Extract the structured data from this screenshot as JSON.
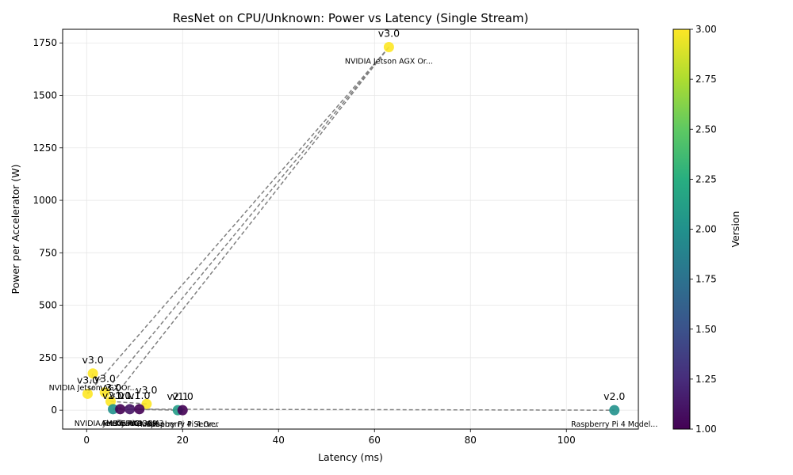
{
  "chart_data": {
    "type": "scatter",
    "title": "ResNet on CPU/Unknown: Power vs Latency (Single Stream)",
    "xlabel": "Latency (ms)",
    "ylabel": "Power per Accelerator (W)",
    "xlim": [
      -5,
      115
    ],
    "ylim": [
      -90,
      1815
    ],
    "xticks": [
      0,
      20,
      40,
      60,
      80,
      100
    ],
    "yticks": [
      0,
      250,
      500,
      750,
      1000,
      1250,
      1500,
      1750
    ],
    "grid": true,
    "colorbar": {
      "label": "Version",
      "range": [
        1.0,
        3.0
      ],
      "ticks": [
        "1.00",
        "1.25",
        "1.50",
        "1.75",
        "2.00",
        "2.25",
        "2.50",
        "2.75",
        "3.00"
      ],
      "colormap": "viridis"
    },
    "points": [
      {
        "x": 63,
        "y": 1730,
        "version": 3.0,
        "version_label": "v3.0",
        "device": "NVIDIA Jetson AGX Or..."
      },
      {
        "x": 1.3,
        "y": 175,
        "version": 3.0,
        "version_label": "v3.0",
        "device": "NVIDIA Jetson AGX Or..."
      },
      {
        "x": 0.2,
        "y": 78,
        "version": 3.0,
        "version_label": "v3.0",
        "device": ""
      },
      {
        "x": 3.8,
        "y": 85,
        "version": 3.0,
        "version_label": "v3.0",
        "device": ""
      },
      {
        "x": 5.0,
        "y": 42,
        "version": 3.0,
        "version_label": "v3.0",
        "device": ""
      },
      {
        "x": 12.5,
        "y": 30,
        "version": 3.0,
        "version_label": "v3.0",
        "device": ""
      },
      {
        "x": 5.5,
        "y": 5,
        "version": 2.0,
        "version_label": "v2.0",
        "device": "NVIDIA Jetson AGX..."
      },
      {
        "x": 7.0,
        "y": 5,
        "version": 1.0,
        "version_label": "v1.0",
        "device": "AMD EPYC"
      },
      {
        "x": 9.0,
        "y": 5,
        "version": 1.1,
        "version_label": "v1.1",
        "device": "Firefly RK3399"
      },
      {
        "x": 11.0,
        "y": 5,
        "version": 1.0,
        "version_label": "v1.0",
        "device": "Khadas VIM3"
      },
      {
        "x": 19.0,
        "y": 0,
        "version": 2.1,
        "version_label": "v2.1",
        "device": "Raspberry Pi 4 Server"
      },
      {
        "x": 20.0,
        "y": 0,
        "version": 1.0,
        "version_label": "v1.0",
        "device": "Raspberry Pi 4 Or..."
      },
      {
        "x": 110,
        "y": 0,
        "version": 2.0,
        "version_label": "v2.0",
        "device": "Raspberry Pi 4 Model..."
      }
    ],
    "connections": [
      [
        0,
        2
      ],
      [
        0,
        3
      ],
      [
        0,
        4
      ],
      [
        1,
        2
      ],
      [
        4,
        5
      ],
      [
        5,
        6
      ],
      [
        6,
        7
      ],
      [
        7,
        11
      ],
      [
        8,
        12
      ],
      [
        9,
        10
      ]
    ]
  }
}
